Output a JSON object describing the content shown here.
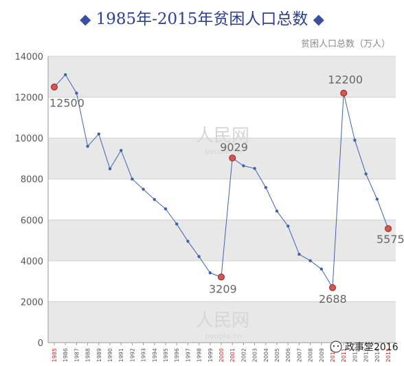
{
  "title": "1985年-2015年贫困人口总数",
  "title_decor": "◆",
  "unit_label": "贫困人口总数（万人）",
  "watermark": {
    "brand": "人民网",
    "site": "people.cn"
  },
  "wechat_label": "政事堂2016",
  "colors": {
    "title": "#2c3f92",
    "line": "#3d62b0",
    "highlight_point": "#d9534f",
    "highlight_tick": "#c0282d",
    "band": "#e8e8e8"
  },
  "chart_data": {
    "type": "line",
    "ylim": [
      0,
      14000
    ],
    "yticks": [
      0,
      2000,
      4000,
      6000,
      8000,
      10000,
      12000,
      14000
    ],
    "grid": true,
    "x": [
      "1985",
      "1986",
      "1987",
      "1988",
      "1989",
      "1990",
      "1991",
      "1992",
      "1993",
      "1994",
      "1995",
      "1996",
      "1997",
      "1998",
      "1999",
      "2000",
      "2001",
      "2002",
      "2003",
      "2004",
      "2005",
      "2006",
      "2007",
      "2008",
      "2009",
      "2010",
      "2011",
      "2012",
      "2013",
      "2014",
      "2015"
    ],
    "series": [
      {
        "values": [
          12500,
          13100,
          12200,
          9600,
          10200,
          8500,
          9400,
          8000,
          7500,
          7000,
          6540,
          5800,
          4960,
          4210,
          3412,
          3209,
          9029,
          8645,
          8517,
          7587,
          6432,
          5698,
          4320,
          4007,
          3597,
          2688,
          12200,
          9899,
          8249,
          7017,
          5575
        ]
      }
    ],
    "highlights": [
      {
        "x": "1985",
        "value": 12500,
        "label": "12500"
      },
      {
        "x": "2000",
        "value": 3209,
        "label": "3209"
      },
      {
        "x": "2001",
        "value": 9029,
        "label": "9029"
      },
      {
        "x": "2010",
        "value": 2688,
        "label": "2688"
      },
      {
        "x": "2011",
        "value": 12200,
        "label": "12200"
      },
      {
        "x": "2015",
        "value": 5575,
        "label": "5575"
      }
    ]
  }
}
